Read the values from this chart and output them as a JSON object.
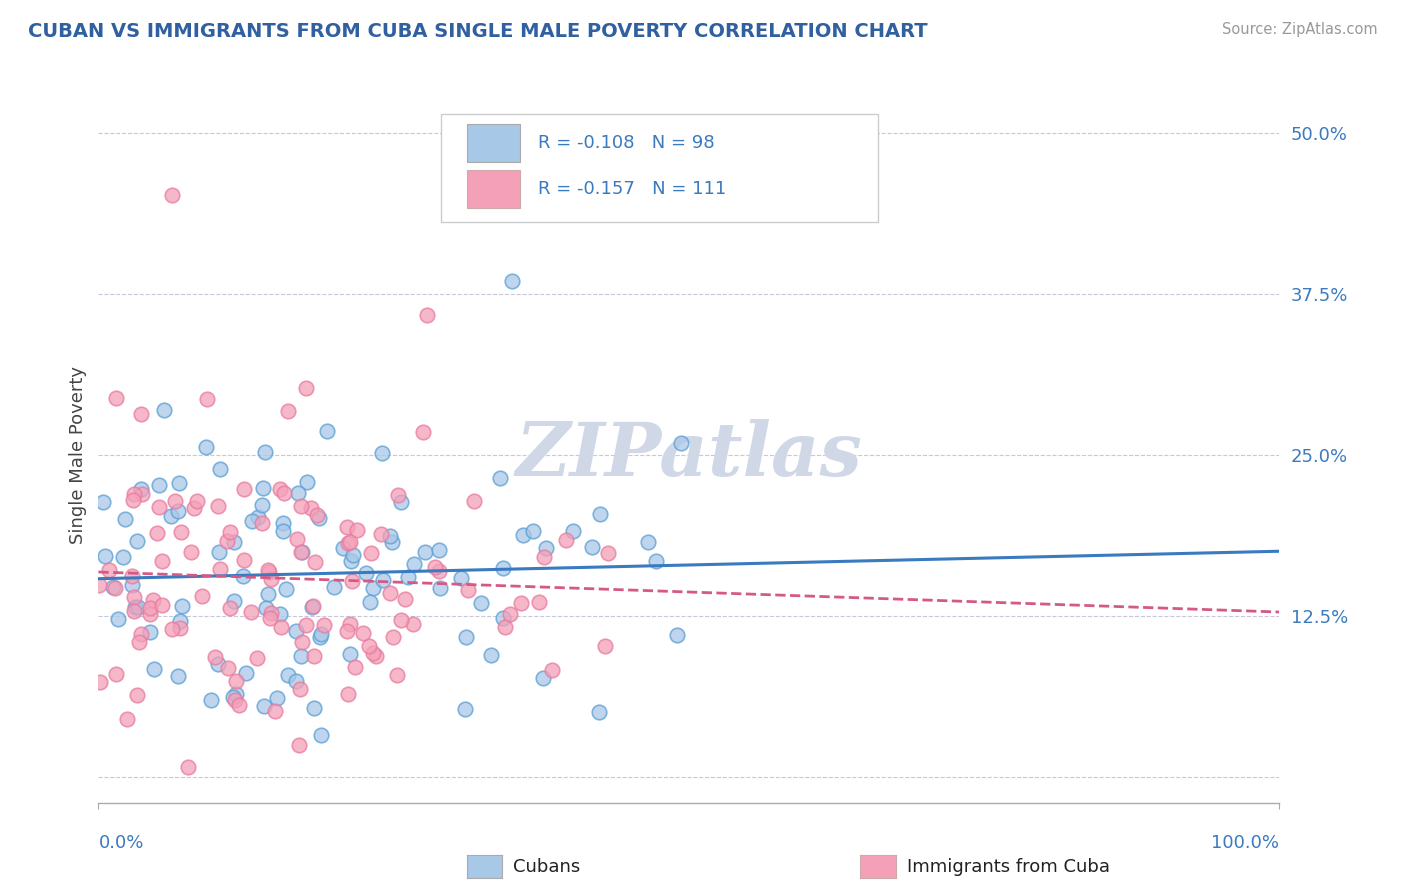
{
  "title": "CUBAN VS IMMIGRANTS FROM CUBA SINGLE MALE POVERTY CORRELATION CHART",
  "source": "Source: ZipAtlas.com",
  "ylabel": "Single Male Poverty",
  "xlim": [
    0.0,
    1.0
  ],
  "ylim": [
    -0.02,
    0.52
  ],
  "yticks": [
    0.0,
    0.125,
    0.25,
    0.375,
    0.5
  ],
  "ytick_labels": [
    "",
    "12.5%",
    "25.0%",
    "37.5%",
    "50.0%"
  ],
  "blue_color": "#a8c8e8",
  "pink_color": "#f4a0b8",
  "blue_edge_color": "#5a9fd4",
  "pink_edge_color": "#e87aa0",
  "blue_line_color": "#3a7abf",
  "pink_line_color": "#d45a85",
  "background_color": "#ffffff",
  "grid_color": "#c8c8d8",
  "title_color": "#3060a0",
  "watermark_color": "#d0d8e8",
  "R_cubans": -0.108,
  "R_immigrants": -0.157,
  "N_cubans": 98,
  "N_immigrants": 111
}
